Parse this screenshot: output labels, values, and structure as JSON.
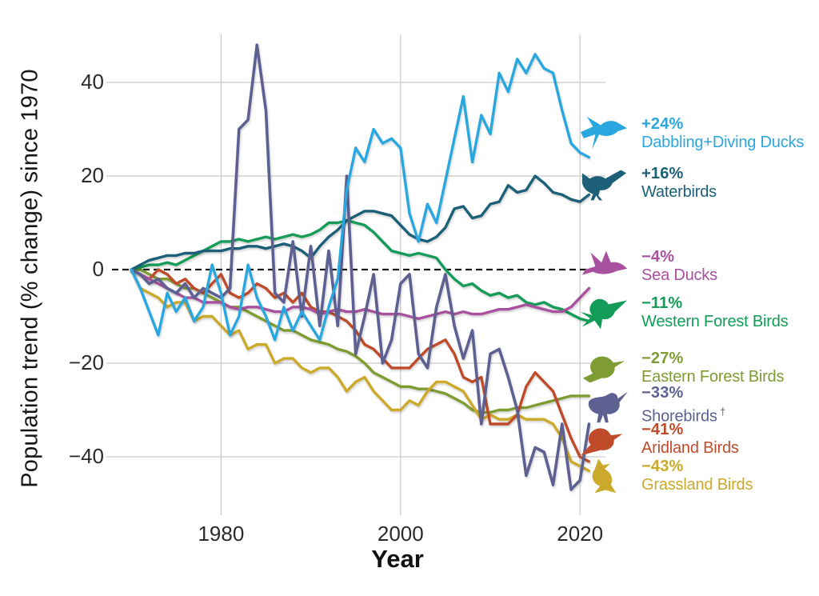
{
  "figure": {
    "background": "#ffffff",
    "grid_color": "#c9c9c9",
    "zero_line_color": "#1a1a1a",
    "axis_text_color": "#2b2b2b"
  },
  "chart_data": {
    "type": "line",
    "title": "",
    "xlabel": "Year",
    "ylabel": "Population trend (% change) since 1970",
    "x_range": [
      1970,
      2021
    ],
    "x_step": 1,
    "ylim": [
      -52,
      52
    ],
    "grid": true,
    "zero_line": "dashed",
    "legend_position": "right",
    "x_ticks": [
      {
        "label": "1980",
        "value": 1980
      },
      {
        "label": "2000",
        "value": 2000
      },
      {
        "label": "2020",
        "value": 2020
      }
    ],
    "y_ticks": [
      {
        "label": "40",
        "value": 40
      },
      {
        "label": "20",
        "value": 20
      },
      {
        "label": "0",
        "value": 0
      },
      {
        "label": "−20",
        "value": -20
      },
      {
        "label": "−40",
        "value": -40
      }
    ],
    "series": [
      {
        "name": "Dabbling+Diving Ducks",
        "percent_label": "+24%",
        "end_value": 24,
        "color": "#2aa7de",
        "icon": "flying-duck-icon",
        "suffix": "",
        "values": [
          0,
          -4,
          -9,
          -14,
          -5,
          -9,
          -6,
          -11,
          -8,
          1,
          -5,
          -14,
          -10,
          1,
          -6,
          -10,
          -15,
          -8,
          -13,
          -9,
          -12,
          -15,
          -8,
          -2,
          17,
          26,
          23,
          30,
          27,
          28,
          26,
          12,
          6,
          14,
          10,
          19,
          28,
          37,
          23,
          33,
          29,
          42,
          38,
          45,
          42,
          46,
          43,
          42,
          34,
          27,
          25,
          24
        ]
      },
      {
        "name": "Waterbirds",
        "percent_label": "+16%",
        "end_value": 16,
        "color": "#1d6078",
        "icon": "rail-icon",
        "suffix": "",
        "values": [
          0,
          1,
          2,
          2.5,
          3,
          3,
          3.5,
          3.5,
          4,
          4,
          4,
          4.5,
          4.5,
          5,
          5,
          4.5,
          5,
          5.5,
          5,
          4,
          2.5,
          5,
          7,
          8.5,
          10.5,
          11.5,
          12.5,
          12.5,
          12,
          11.5,
          9.5,
          7.5,
          6.5,
          6,
          7,
          9,
          13,
          13.5,
          11,
          11.5,
          14,
          14.5,
          18,
          16.5,
          17,
          20,
          18.5,
          16.5,
          16,
          15,
          14.5,
          16
        ]
      },
      {
        "name": "Sea Ducks",
        "percent_label": "−4%",
        "end_value": -4,
        "color": "#a8519f",
        "icon": "sea-duck-icon",
        "suffix": "",
        "values": [
          0,
          -1,
          -2,
          -3,
          -4,
          -5,
          -6,
          -6,
          -7,
          -7,
          -7,
          -8,
          -8.5,
          -8,
          -8,
          -8.5,
          -9,
          -9,
          -8,
          -8,
          -8.5,
          -9.5,
          -9,
          -8.5,
          -9,
          -9,
          -8.5,
          -9,
          -9.5,
          -9.5,
          -9.5,
          -10,
          -10.5,
          -10,
          -9.5,
          -9,
          -9.5,
          -9,
          -9.5,
          -9.5,
          -9,
          -8.5,
          -8.5,
          -8,
          -7.5,
          -8,
          -8.5,
          -9,
          -9,
          -8,
          -6,
          -4
        ]
      },
      {
        "name": "Western Forest Birds",
        "percent_label": "−11%",
        "end_value": -11,
        "color": "#129c58",
        "icon": "hummingbird-icon",
        "suffix": "",
        "values": [
          0,
          0.5,
          1,
          1,
          1.5,
          1,
          2,
          3,
          4,
          5,
          6,
          6,
          6.5,
          6,
          6.5,
          7,
          6.5,
          7,
          7.5,
          7,
          7.5,
          8.5,
          10,
          10,
          10.5,
          10,
          9.5,
          8,
          6,
          4,
          3.5,
          3,
          3.5,
          3,
          2.5,
          0,
          -2,
          -3.5,
          -3,
          -4.5,
          -5.5,
          -5,
          -6,
          -5.5,
          -7,
          -7.5,
          -7,
          -8,
          -8.5,
          -9.5,
          -10.5,
          -11
        ]
      },
      {
        "name": "Eastern Forest Birds",
        "percent_label": "−27%",
        "end_value": -27,
        "color": "#7f9c33",
        "icon": "songbird-icon",
        "suffix": "",
        "values": [
          0,
          0,
          -1,
          -2,
          -2,
          -3,
          -4,
          -4,
          -5,
          -6,
          -7,
          -8,
          -8,
          -9,
          -10,
          -11,
          -12,
          -13,
          -13,
          -14,
          -15,
          -15.5,
          -16,
          -17,
          -17.5,
          -18.5,
          -20,
          -22,
          -23,
          -24,
          -25,
          -25,
          -25.5,
          -25.5,
          -26,
          -26.5,
          -27.5,
          -28.5,
          -30,
          -30.5,
          -30.5,
          -30,
          -30,
          -29.5,
          -29.5,
          -29,
          -28.5,
          -28,
          -27.5,
          -27,
          -27,
          -27
        ]
      },
      {
        "name": "Shorebirds",
        "percent_label": "−33%",
        "end_value": -33,
        "color": "#5d6191",
        "icon": "curlew-icon",
        "suffix": "†",
        "values": [
          0,
          -1,
          -3,
          -2,
          -4,
          -5,
          -3,
          -6,
          -4,
          -5,
          -6,
          -4,
          30,
          32,
          48,
          34,
          -5,
          -7,
          6,
          -10,
          5,
          -12,
          4,
          -12,
          20,
          -18,
          -10,
          -1,
          -20,
          -15,
          -3,
          -1,
          -18,
          -21,
          -8,
          -1,
          -12,
          -19,
          -13,
          -33,
          -18,
          -17,
          -23,
          -30,
          -44,
          -38,
          -39,
          -46,
          -33,
          -47,
          -45,
          -33
        ]
      },
      {
        "name": "Aridland Birds",
        "percent_label": "−41%",
        "end_value": -41,
        "color": "#bf4b2b",
        "icon": "thrasher-icon",
        "suffix": "",
        "values": [
          0,
          -1,
          -2,
          0,
          -1,
          -3,
          -2,
          -4,
          -5,
          -3,
          -1,
          -5,
          -6,
          -5,
          -3,
          -4,
          -6,
          -5,
          -7,
          -5,
          -8,
          -9,
          -9,
          -10,
          -11,
          -13,
          -16,
          -17,
          -19,
          -21,
          -21,
          -21,
          -19,
          -17,
          -16,
          -15,
          -18,
          -23,
          -24,
          -23,
          -33,
          -33,
          -33,
          -31,
          -25,
          -22,
          -24,
          -26,
          -31,
          -36,
          -40,
          -41
        ]
      },
      {
        "name": "Grassland Birds",
        "percent_label": "−43%",
        "end_value": -43,
        "color": "#cba92b",
        "icon": "meadowlark-icon",
        "suffix": "",
        "values": [
          0,
          -4,
          -5,
          -6,
          -8,
          -7,
          -7,
          -11,
          -10,
          -10,
          -12,
          -14,
          -13,
          -17,
          -16,
          -16,
          -20,
          -19,
          -19,
          -21,
          -22,
          -21,
          -21,
          -23,
          -26,
          -24,
          -23,
          -26,
          -28,
          -30,
          -30,
          -28,
          -29,
          -26,
          -24,
          -24,
          -25,
          -26,
          -29,
          -32,
          -31,
          -32,
          -32,
          -31,
          -32,
          -32,
          -32,
          -33,
          -36,
          -41,
          -42,
          -43
        ]
      }
    ]
  }
}
